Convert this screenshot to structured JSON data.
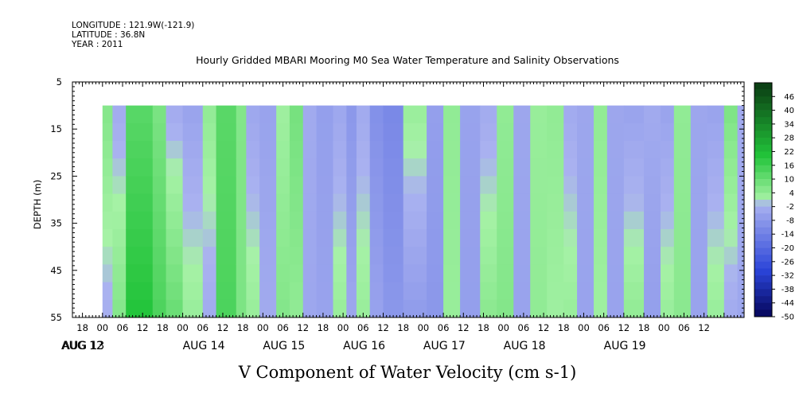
{
  "meta": {
    "longitude": "LONGITUDE : 121.9W(-121.9)",
    "latitude": "LATITUDE : 36.8N",
    "year": "YEAR : 2011"
  },
  "chart_data": {
    "type": "heatmap",
    "title": "Hourly Gridded MBARI Mooring M0 Sea Water Temperature and Salinity Observations",
    "xlabel": "V Component of Water Velocity (cm s-1)",
    "ylabel": "DEPTH (m)",
    "y_ticks": [
      5,
      15,
      25,
      35,
      45,
      55
    ],
    "ylim": [
      5,
      55
    ],
    "y_inverted": true,
    "data_depth_range": [
      10,
      55
    ],
    "x_range_hours": [
      -9,
      192
    ],
    "x_hour_labels": [
      "18",
      "00",
      "06",
      "12",
      "18",
      "00",
      "06",
      "12",
      "18",
      "00",
      "06",
      "12",
      "18",
      "00",
      "06",
      "12",
      "18",
      "00",
      "06",
      "12",
      "18",
      "00",
      "06",
      "12",
      "18",
      "00",
      "06",
      "12",
      "18",
      "00",
      "06",
      "12"
    ],
    "x_day_labels": [
      "AUG 12",
      "AUG 13",
      "AUG 14",
      "AUG 15",
      "AUG 16",
      "AUG 17",
      "AUG 18",
      "AUG 19"
    ],
    "day_label_hours": [
      -30,
      0,
      36,
      60,
      84,
      108,
      132,
      156
    ],
    "colorbar": {
      "labels": [
        "46",
        "40",
        "34",
        "28",
        "22",
        "16",
        "10",
        "4",
        "-2",
        "-8",
        "-14",
        "-20",
        "-26",
        "-32",
        "-38",
        "-44",
        "-50"
      ],
      "min": -50,
      "max": 52,
      "step": 3,
      "colors": {
        "strong_positive": "#0a3a12",
        "positive_mid": "#22c43a",
        "weak_positive": "#a6f2a6",
        "weak_negative": "#aab2f0",
        "negative_mid": "#2a44d8",
        "strong_negative": "#05055a"
      }
    },
    "bands": [
      {
        "start": 0,
        "end": 3,
        "top": 6,
        "bottom": -2
      },
      {
        "start": 3,
        "end": 7,
        "top": -3,
        "bottom": 6
      },
      {
        "start": 7,
        "end": 15,
        "top": 12,
        "bottom": 20
      },
      {
        "start": 15,
        "end": 19,
        "top": 7,
        "bottom": 14
      },
      {
        "start": 19,
        "end": 24,
        "top": -3,
        "bottom": 10
      },
      {
        "start": 24,
        "end": 30,
        "top": -5,
        "bottom": 3
      },
      {
        "start": 30,
        "end": 34,
        "top": 4,
        "bottom": -3
      },
      {
        "start": 34,
        "end": 40,
        "top": 12,
        "bottom": 14
      },
      {
        "start": 40,
        "end": 43,
        "top": 6,
        "bottom": 7
      },
      {
        "start": 43,
        "end": 47,
        "top": -4,
        "bottom": 3
      },
      {
        "start": 47,
        "end": 52,
        "top": -5,
        "bottom": -3
      },
      {
        "start": 52,
        "end": 56,
        "top": 2,
        "bottom": 6
      },
      {
        "start": 56,
        "end": 60,
        "top": 8,
        "bottom": 4
      },
      {
        "start": 60,
        "end": 64,
        "top": -3,
        "bottom": -4
      },
      {
        "start": 64,
        "end": 69,
        "top": -6,
        "bottom": -5
      },
      {
        "start": 69,
        "end": 73,
        "top": -4,
        "bottom": 3
      },
      {
        "start": 73,
        "end": 76,
        "top": -8,
        "bottom": -4
      },
      {
        "start": 76,
        "end": 80,
        "top": -3,
        "bottom": 3
      },
      {
        "start": 80,
        "end": 84,
        "top": -10,
        "bottom": -5
      },
      {
        "start": 84,
        "end": 90,
        "top": -12,
        "bottom": -8
      },
      {
        "start": 90,
        "end": 97,
        "top": 3,
        "bottom": -7
      },
      {
        "start": 97,
        "end": 102,
        "top": -6,
        "bottom": -8
      },
      {
        "start": 102,
        "end": 107,
        "top": 4,
        "bottom": 3
      },
      {
        "start": 107,
        "end": 113,
        "top": -5,
        "bottom": -6
      },
      {
        "start": 113,
        "end": 118,
        "top": -3,
        "bottom": 5
      },
      {
        "start": 118,
        "end": 123,
        "top": 4,
        "bottom": 6
      },
      {
        "start": 123,
        "end": 128,
        "top": -4,
        "bottom": -5
      },
      {
        "start": 128,
        "end": 133,
        "top": 3,
        "bottom": 4
      },
      {
        "start": 133,
        "end": 138,
        "top": 4,
        "bottom": 2
      },
      {
        "start": 138,
        "end": 142,
        "top": -3,
        "bottom": 3
      },
      {
        "start": 142,
        "end": 147,
        "top": -4,
        "bottom": -5
      },
      {
        "start": 147,
        "end": 151,
        "top": 4,
        "bottom": 2
      },
      {
        "start": 151,
        "end": 156,
        "top": -4,
        "bottom": -5
      },
      {
        "start": 156,
        "end": 162,
        "top": -5,
        "bottom": 4
      },
      {
        "start": 162,
        "end": 167,
        "top": -3,
        "bottom": -6
      },
      {
        "start": 167,
        "end": 171,
        "top": -5,
        "bottom": 3
      },
      {
        "start": 171,
        "end": 176,
        "top": 4,
        "bottom": 5
      },
      {
        "start": 176,
        "end": 181,
        "top": -4,
        "bottom": -5
      },
      {
        "start": 181,
        "end": 186,
        "top": -5,
        "bottom": 3
      },
      {
        "start": 186,
        "end": 190,
        "top": 7,
        "bottom": -3
      },
      {
        "start": 190,
        "end": 192,
        "top": -3,
        "bottom": -4
      }
    ]
  }
}
